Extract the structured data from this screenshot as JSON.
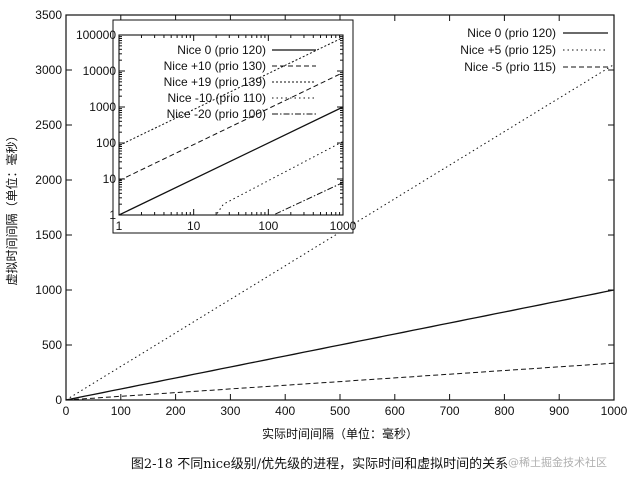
{
  "chart_data": [
    {
      "type": "line",
      "title": "",
      "xlabel": "实际时间间隔（单位：毫秒）",
      "ylabel": "虚拟时间间隔（单位：毫秒）",
      "xlim": [
        0,
        1000
      ],
      "ylim": [
        0,
        3500
      ],
      "xticks": [
        0,
        100,
        200,
        300,
        400,
        500,
        600,
        700,
        800,
        900,
        1000
      ],
      "yticks": [
        0,
        500,
        1000,
        1500,
        2000,
        2500,
        3000,
        3500
      ],
      "legend_position": "top-right",
      "series": [
        {
          "name": "Nice 0 (prio 120)",
          "style": "solid",
          "x": [
            0,
            1000
          ],
          "y": [
            0,
            1000
          ]
        },
        {
          "name": "Nice +5 (prio 125)",
          "style": "dotted",
          "x": [
            0,
            1000
          ],
          "y": [
            0,
            3050
          ]
        },
        {
          "name": "Nice -5 (prio 115)",
          "style": "dashed",
          "x": [
            0,
            1000
          ],
          "y": [
            0,
            335
          ]
        }
      ]
    },
    {
      "type": "line",
      "scale": "log-log",
      "xlim": [
        1,
        1000
      ],
      "ylim": [
        1,
        100000
      ],
      "xticks": [
        1,
        10,
        100,
        1000
      ],
      "yticks": [
        1,
        10,
        100,
        1000,
        10000,
        100000
      ],
      "xtick_labels": [
        "1",
        "10",
        "100",
        "1000"
      ],
      "ytick_labels": [
        "1",
        "10",
        "100",
        "1000",
        "10000",
        "100000"
      ],
      "legend_position": "top-right",
      "series": [
        {
          "name": "Nice 0 (prio 120)",
          "style": "solid",
          "x": [
            1,
            1000
          ],
          "y": [
            1,
            1000
          ]
        },
        {
          "name": "Nice +10 (prio 130)",
          "style": "dashed",
          "x": [
            1,
            1000
          ],
          "y": [
            9,
            9000
          ]
        },
        {
          "name": "Nice +19 (prio 139)",
          "style": "densely-dotted",
          "x": [
            1,
            1000
          ],
          "y": [
            85,
            85000
          ]
        },
        {
          "name": "Nice -10 (prio 110)",
          "style": "dotted",
          "x": [
            1,
            20,
            25,
            1000
          ],
          "y": [
            1,
            1,
            2,
            110
          ]
        },
        {
          "name": "Nice -20 (prio 100)",
          "style": "dash-dot",
          "x": [
            1,
            1000
          ],
          "y": [
            0.01,
            8
          ]
        }
      ]
    }
  ],
  "caption": "图2-18  不同nice级别/优先级的进程，实际时间和虚拟时间的关系",
  "watermark": "@稀土掘金技术社区"
}
